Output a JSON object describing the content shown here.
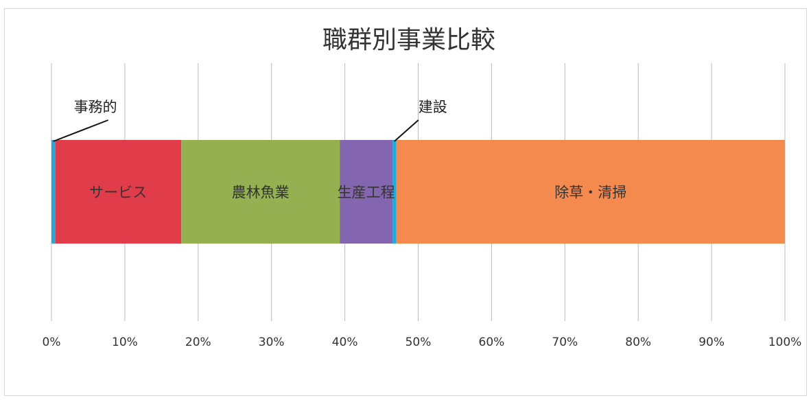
{
  "chart_data": {
    "type": "bar",
    "orientation": "horizontal-stacked-100",
    "title": "職群別事業比較",
    "xlim": [
      0,
      100
    ],
    "x_unit": "%",
    "x_ticks": [
      "0%",
      "10%",
      "20%",
      "30%",
      "40%",
      "50%",
      "60%",
      "70%",
      "80%",
      "90%",
      "100%"
    ],
    "grid": true,
    "legend": "none",
    "series": [
      {
        "name": "事務的",
        "value": 0.5,
        "color": "#22aadd",
        "label_style": "callout"
      },
      {
        "name": "サービス",
        "value": 17.2,
        "color": "#e03c4a",
        "label_style": "inside"
      },
      {
        "name": "農林魚業",
        "value": 21.6,
        "color": "#95b050",
        "label_style": "inside"
      },
      {
        "name": "生産工程",
        "value": 7.2,
        "color": "#8466b0",
        "label_style": "inside"
      },
      {
        "name": "建設",
        "value": 0.5,
        "color": "#22aadd",
        "label_style": "callout"
      },
      {
        "name": "除草・清掃",
        "value": 53.0,
        "color": "#f58a4e",
        "label_style": "inside"
      }
    ]
  }
}
